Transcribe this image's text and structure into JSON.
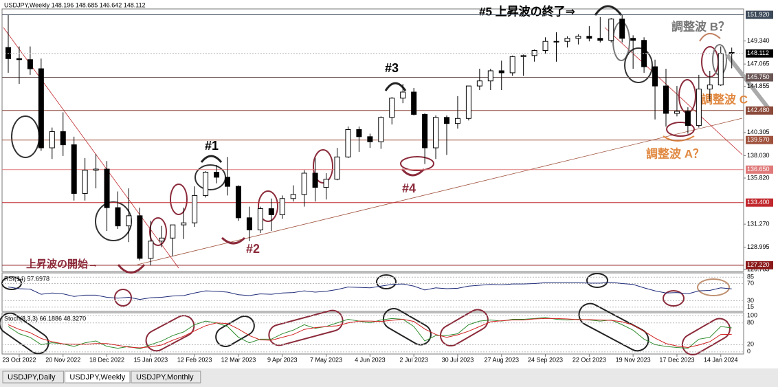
{
  "chart_data": {
    "type": "candlestick",
    "title": "USDJPY,Weekly  148.196 148.685 146.642 148.112",
    "categories": [
      null,
      "23 Oct 2022",
      null,
      null,
      null,
      "20 Nov 2022",
      null,
      null,
      null,
      "18 Dec 2022",
      null,
      null,
      null,
      "15 Jan 2023",
      null,
      null,
      null,
      "12 Feb 2023",
      null,
      null,
      null,
      "12 Mar 2023",
      null,
      null,
      null,
      "9 Apr 2023",
      null,
      null,
      null,
      "7 May 2023",
      null,
      null,
      null,
      "4 Jun 2023",
      null,
      null,
      null,
      "2 Jul 2023",
      null,
      null,
      null,
      "30 Jul 2023",
      null,
      null,
      null,
      "27 Aug 2023",
      null,
      null,
      null,
      "24 Sep 2023",
      null,
      null,
      null,
      "22 Oct 2023",
      null,
      null,
      null,
      "19 Nov 2023",
      null,
      null,
      null,
      "17 Dec 2023",
      null,
      null,
      null,
      "14 Jan 2024",
      null
    ],
    "open": [
      148.7,
      147.6,
      147.5,
      146.6,
      138.8,
      140.4,
      139.1,
      134.3,
      136.6,
      136.7,
      132.9,
      131.1,
      132.1,
      127.9,
      129.6,
      129.9,
      131.2,
      131.4,
      134.1,
      136.4,
      135.9,
      135.0,
      131.9,
      130.7,
      132.8,
      132.2,
      133.8,
      134.2,
      136.3,
      134.9,
      135.7,
      137.9,
      140.6,
      139.9,
      139.4,
      141.8,
      143.7,
      144.3,
      142.1,
      138.8,
      141.8,
      141.2,
      141.7,
      144.9,
      145.4,
      146.4,
      146.2,
      147.8,
      147.9,
      148.4,
      149.3,
      149.3,
      149.6,
      149.8,
      149.6,
      149.4,
      151.5,
      149.6,
      149.4,
      146.8,
      144.9,
      142.2,
      142.4,
      141.0,
      144.6,
      145.0,
      148.196
    ],
    "high": [
      151.9,
      148.8,
      148.8,
      147.6,
      140.8,
      142.3,
      139.9,
      137.8,
      138.2,
      137.5,
      134.5,
      134.8,
      132.9,
      131.6,
      131.1,
      131.2,
      132.9,
      135.0,
      136.5,
      137.1,
      137.9,
      135.1,
      133.0,
      133.0,
      133.8,
      134.1,
      135.1,
      136.6,
      137.8,
      136.3,
      138.8,
      140.9,
      140.9,
      140.2,
      141.9,
      143.8,
      145.1,
      144.7,
      142.2,
      142.0,
      142.0,
      143.9,
      144.9,
      146.6,
      146.6,
      147.4,
      147.9,
      148.0,
      148.5,
      149.7,
      150.2,
      149.8,
      150.0,
      150.8,
      151.7,
      151.6,
      151.9,
      149.9,
      149.7,
      147.5,
      146.6,
      144.9,
      142.8,
      146.0,
      146.4,
      148.8,
      148.685
    ],
    "low": [
      146.2,
      145.1,
      146.0,
      138.5,
      137.7,
      138.0,
      133.6,
      133.6,
      134.8,
      130.6,
      130.8,
      129.5,
      127.7,
      127.2,
      129.0,
      128.1,
      129.8,
      131.0,
      133.9,
      135.3,
      134.1,
      131.6,
      129.6,
      130.4,
      130.6,
      131.8,
      133.5,
      133.0,
      133.5,
      133.7,
      135.6,
      137.8,
      138.4,
      138.8,
      138.7,
      141.1,
      143.2,
      142.0,
      137.2,
      137.7,
      138.1,
      140.7,
      141.5,
      144.5,
      144.5,
      144.5,
      145.9,
      145.9,
      147.3,
      148.1,
      147.3,
      148.7,
      149.0,
      149.3,
      149.2,
      149.2,
      149.2,
      146.6,
      146.2,
      141.6,
      140.9,
      141.9,
      140.2,
      140.8,
      143.4,
      144.9,
      146.642
    ],
    "close": [
      147.6,
      147.5,
      146.6,
      138.8,
      140.4,
      139.1,
      134.3,
      136.6,
      136.7,
      132.9,
      131.1,
      132.1,
      127.9,
      129.6,
      129.9,
      131.2,
      131.4,
      134.1,
      136.4,
      135.9,
      135.0,
      131.9,
      130.7,
      132.8,
      132.2,
      133.8,
      134.2,
      136.3,
      134.9,
      135.7,
      137.9,
      140.6,
      139.9,
      139.4,
      141.8,
      143.7,
      144.3,
      142.1,
      138.8,
      141.8,
      141.2,
      141.7,
      144.9,
      145.4,
      146.4,
      146.2,
      147.8,
      147.9,
      148.4,
      149.3,
      149.3,
      149.6,
      149.8,
      149.6,
      149.4,
      151.5,
      149.6,
      149.4,
      146.8,
      144.9,
      142.2,
      142.4,
      141.0,
      144.6,
      145.0,
      148.1,
      148.112
    ],
    "ylim": [
      126.6,
      152.5
    ],
    "yticks": [
      {
        "value": 149.34,
        "label": "149.340"
      },
      {
        "value": 147.065,
        "label": "147.065"
      },
      {
        "value": 144.855,
        "label": "144.855"
      },
      {
        "value": 140.305,
        "label": "140.305"
      },
      {
        "value": 138.03,
        "label": "138.030"
      },
      {
        "value": 135.82,
        "label": "135.820"
      },
      {
        "value": 131.27,
        "label": "131.270"
      },
      {
        "value": 128.995,
        "label": "128.995"
      },
      {
        "value": 126.785,
        "label": "126.785"
      }
    ],
    "levels": [
      {
        "value": 151.92,
        "label": "151.920",
        "color": "#3c4a5a"
      },
      {
        "value": 145.75,
        "label": "145.750",
        "color": "#6b5656"
      },
      {
        "value": 142.48,
        "label": "142.480",
        "color": "#8b4a3a"
      },
      {
        "value": 139.57,
        "label": "139.570",
        "color": "#a0523d"
      },
      {
        "value": 136.65,
        "label": "136.650",
        "color": "#e07a7a"
      },
      {
        "value": 133.4,
        "label": "133.400",
        "color": "#c0282d"
      },
      {
        "value": 127.22,
        "label": "127.220",
        "color": "#8b1a1a"
      }
    ],
    "current": {
      "value": 148.112,
      "label": "148.112"
    },
    "annotations": [
      "#5 上昇波の終了⇒",
      "#3",
      "#1",
      "#2",
      "#4",
      "上昇波の開始→",
      "調整波 B？",
      "調整波 C",
      "調整波 A？"
    ],
    "rsi": {
      "name": "RSI(14) 57.6978",
      "color": "#1e2a78",
      "ylim": [
        5,
        95
      ],
      "yticks": [
        85,
        70,
        30,
        15
      ],
      "values": [
        62,
        58,
        57,
        45,
        48,
        46,
        40,
        43,
        43,
        38,
        36,
        38,
        33,
        37,
        38,
        41,
        42,
        48,
        53,
        52,
        50,
        44,
        42,
        46,
        45,
        48,
        49,
        53,
        50,
        52,
        56,
        62,
        61,
        60,
        64,
        68,
        69,
        64,
        55,
        60,
        58,
        59,
        64,
        66,
        68,
        67,
        69,
        69,
        70,
        72,
        72,
        72,
        72,
        71,
        71,
        73,
        70,
        68,
        60,
        53,
        48,
        49,
        46,
        53,
        54,
        60,
        57.7
      ]
    },
    "stoch": {
      "name": "Stoch(8,3,3) 66.1886 48.3270",
      "ylim": [
        -6,
        108
      ],
      "yticks": [
        100,
        80,
        20,
        0
      ],
      "series": [
        {
          "color": "#2e8b2e",
          "values": [
            70,
            50,
            40,
            20,
            25,
            22,
            15,
            25,
            30,
            15,
            10,
            15,
            8,
            20,
            30,
            45,
            55,
            75,
            85,
            80,
            70,
            40,
            25,
            35,
            35,
            50,
            60,
            75,
            65,
            70,
            80,
            90,
            85,
            80,
            88,
            92,
            90,
            70,
            30,
            45,
            45,
            50,
            75,
            85,
            88,
            85,
            90,
            90,
            92,
            95,
            90,
            88,
            90,
            88,
            85,
            88,
            75,
            60,
            35,
            20,
            15,
            12,
            10,
            35,
            40,
            70,
            66.2
          ]
        },
        {
          "color": "#d02020",
          "values": [
            75,
            62,
            53,
            37,
            28,
            22,
            21,
            21,
            23,
            23,
            18,
            13,
            11,
            14,
            19,
            32,
            43,
            58,
            72,
            80,
            78,
            63,
            45,
            33,
            32,
            40,
            48,
            62,
            67,
            70,
            72,
            80,
            85,
            85,
            84,
            87,
            90,
            84,
            63,
            48,
            40,
            47,
            57,
            70,
            83,
            86,
            88,
            88,
            91,
            92,
            92,
            91,
            89,
            89,
            88,
            87,
            83,
            74,
            57,
            38,
            23,
            16,
            12,
            19,
            28,
            48,
            48.3
          ]
        }
      ]
    },
    "tabs": [
      "USDJPY,Daily",
      "USDJPY,Weekly",
      "USDJPY,Monthly"
    ]
  }
}
